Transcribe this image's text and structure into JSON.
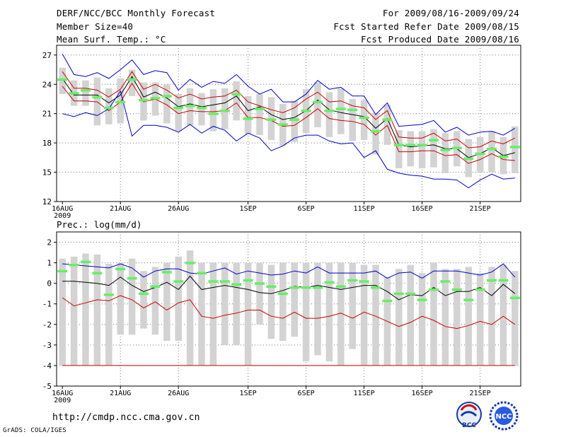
{
  "header": {
    "title": "DERF/NCC/BCC Monthly Forecast",
    "member": "Member Size=40",
    "variable": "Mean Surf. Temp.: °C",
    "period": "For 2009/08/16-2009/09/24",
    "started": "Fcst Started Refer Date 2009/08/15",
    "produced": "Fcst Produced Date 2009/08/16"
  },
  "footer": {
    "url": "http://cmdp.ncc.cma.gov.cn",
    "credit": "GrADS: COLA/IGES"
  },
  "logos": {
    "bcc": "BCC",
    "ncc": "NCC"
  },
  "colors": {
    "envelope": "#0000cc",
    "spread": "#cc0000",
    "mean": "#000000",
    "box": "#d3d3d3",
    "median": "#66ee66",
    "grid": "#777777"
  },
  "chart_data": [
    {
      "type": "line",
      "title": "",
      "ylabel": "Mean Surf. Temp.: °C",
      "ylim": [
        12,
        28
      ],
      "yticks": [
        12,
        15,
        18,
        21,
        24,
        27
      ],
      "xtick_labels": [
        "16AUG",
        "21AUG",
        "26AUG",
        "1SEP",
        "6SEP",
        "11SEP",
        "16SEP",
        "21SEP"
      ],
      "xtick_days": [
        1,
        6,
        11,
        17,
        22,
        27,
        32,
        37
      ],
      "year_label": "2009",
      "x_days": [
        1,
        2,
        3,
        4,
        5,
        6,
        7,
        8,
        9,
        10,
        11,
        12,
        13,
        14,
        15,
        16,
        17,
        18,
        19,
        20,
        21,
        22,
        23,
        24,
        25,
        26,
        27,
        28,
        29,
        30,
        31,
        32,
        33,
        34,
        35,
        36,
        37,
        38,
        39,
        40
      ],
      "series": [
        {
          "name": "max",
          "values": [
            27.1,
            25.0,
            24.8,
            25.2,
            24.6,
            25.5,
            26.5,
            25.0,
            25.4,
            25.2,
            23.4,
            24.5,
            23.7,
            24.3,
            24.1,
            25.0,
            23.8,
            23.0,
            23.5,
            22.2,
            22.2,
            23.0,
            24.4,
            23.5,
            23.7,
            22.8,
            22.8,
            20.9,
            22.1,
            19.7,
            19.8,
            19.9,
            20.3,
            19.1,
            19.6,
            18.8,
            19.1,
            19.2,
            18.8,
            19.5
          ]
        },
        {
          "name": "upper",
          "values": [
            25.3,
            23.6,
            23.6,
            23.4,
            22.7,
            23.5,
            25.3,
            23.5,
            24.0,
            23.4,
            22.6,
            23.0,
            22.5,
            22.7,
            22.8,
            23.4,
            22.2,
            21.8,
            21.4,
            21.1,
            21.6,
            22.5,
            23.2,
            22.2,
            22.3,
            21.8,
            21.6,
            20.4,
            21.3,
            18.6,
            18.5,
            18.5,
            19.0,
            18.2,
            18.4,
            17.5,
            17.6,
            18.2,
            17.9,
            18.5
          ]
        },
        {
          "name": "mean",
          "values": [
            24.6,
            22.9,
            22.9,
            22.9,
            22.1,
            22.9,
            24.8,
            22.7,
            23.2,
            22.6,
            21.7,
            22.0,
            21.7,
            21.9,
            22.1,
            22.8,
            21.3,
            21.7,
            20.9,
            20.4,
            20.6,
            21.3,
            22.4,
            21.4,
            21.1,
            20.9,
            20.7,
            19.5,
            20.5,
            17.8,
            17.6,
            17.7,
            17.8,
            17.4,
            17.4,
            16.5,
            16.9,
            17.5,
            16.7,
            17.0
          ]
        },
        {
          "name": "lower",
          "values": [
            23.8,
            22.3,
            22.3,
            22.2,
            21.3,
            22.2,
            24.1,
            22.2,
            22.5,
            21.9,
            21.0,
            21.3,
            21.2,
            21.2,
            21.3,
            22.1,
            20.6,
            20.6,
            20.3,
            19.7,
            19.8,
            20.6,
            21.5,
            20.5,
            20.3,
            20.2,
            19.9,
            18.8,
            19.8,
            17.1,
            17.1,
            17.2,
            17.2,
            16.7,
            16.8,
            15.9,
            16.3,
            16.9,
            16.3,
            16.2
          ]
        },
        {
          "name": "min",
          "values": [
            21.0,
            20.7,
            21.1,
            20.8,
            21.5,
            23.3,
            18.7,
            19.8,
            19.8,
            19.6,
            19.1,
            19.9,
            19.0,
            19.7,
            19.3,
            18.2,
            19.0,
            18.5,
            17.2,
            17.7,
            18.5,
            18.8,
            18.8,
            18.2,
            17.9,
            18.0,
            16.5,
            17.2,
            15.3,
            14.9,
            14.7,
            14.6,
            14.3,
            14.3,
            14.2,
            13.4,
            14.2,
            14.8,
            14.3,
            14.4
          ]
        }
      ],
      "boxes": {
        "low": [
          23.0,
          21.8,
          21.8,
          19.8,
          19.9,
          20.0,
          22.8,
          20.3,
          20.8,
          20.0,
          19.2,
          19.8,
          19.8,
          19.2,
          19.4,
          20.3,
          18.9,
          18.8,
          18.3,
          17.7,
          18.1,
          19.0,
          19.6,
          18.6,
          18.9,
          18.2,
          18.3,
          16.8,
          17.8,
          15.4,
          15.6,
          15.4,
          15.5,
          14.9,
          15.6,
          14.5,
          15.0,
          15.0,
          14.8,
          14.9
        ],
        "high": [
          25.7,
          24.4,
          24.4,
          24.7,
          23.6,
          24.6,
          25.5,
          24.2,
          24.2,
          24.0,
          23.0,
          23.6,
          23.1,
          23.5,
          23.6,
          24.3,
          22.8,
          23.0,
          22.7,
          22.0,
          22.3,
          23.5,
          24.2,
          23.2,
          23.6,
          22.5,
          22.4,
          21.1,
          21.9,
          19.3,
          19.2,
          19.2,
          19.4,
          19.0,
          19.2,
          18.4,
          18.6,
          19.2,
          18.6,
          19.7
        ],
        "median": [
          24.5,
          23.1,
          23.4,
          22.7,
          21.6,
          22.2,
          24.5,
          22.4,
          22.6,
          22.8,
          21.6,
          21.8,
          21.6,
          21.0,
          21.3,
          23.0,
          20.5,
          21.5,
          20.4,
          19.9,
          20.4,
          21.3,
          22.2,
          21.3,
          21.5,
          21.4,
          20.6,
          19.2,
          20.4,
          17.8,
          17.8,
          17.8,
          18.3,
          17.3,
          17.5,
          16.4,
          16.9,
          17.4,
          16.6,
          17.6
        ]
      }
    },
    {
      "type": "line",
      "title": "",
      "ylabel": "Prec.: log(mm/d)",
      "ylim": [
        -5,
        2.5
      ],
      "yticks": [
        -5,
        -4,
        -3,
        -2,
        -1,
        0,
        1,
        2
      ],
      "xtick_labels": [
        "16AUG",
        "21AUG",
        "26AUG",
        "1SEP",
        "6SEP",
        "11SEP",
        "16SEP",
        "21SEP"
      ],
      "xtick_days": [
        1,
        6,
        11,
        17,
        22,
        27,
        32,
        37
      ],
      "year_label": "2009",
      "x_days": [
        1,
        2,
        3,
        4,
        5,
        6,
        7,
        8,
        9,
        10,
        11,
        12,
        13,
        14,
        15,
        16,
        17,
        18,
        19,
        20,
        21,
        22,
        23,
        24,
        25,
        26,
        27,
        28,
        29,
        30,
        31,
        32,
        33,
        34,
        35,
        36,
        37,
        38,
        39,
        40
      ],
      "series": [
        {
          "name": "upper",
          "values": [
            0.95,
            0.9,
            0.85,
            0.8,
            0.75,
            0.95,
            0.75,
            0.3,
            0.6,
            0.7,
            0.7,
            0.5,
            0.45,
            0.6,
            0.75,
            0.45,
            0.6,
            0.5,
            0.4,
            0.45,
            0.6,
            0.5,
            0.8,
            0.5,
            0.5,
            0.5,
            0.5,
            0.6,
            0.25,
            0.5,
            0.55,
            0.25,
            0.6,
            0.6,
            0.6,
            0.5,
            0.4,
            0.55,
            0.95,
            0.3
          ]
        },
        {
          "name": "mean",
          "values": [
            0.1,
            0.1,
            0.05,
            0.0,
            -0.1,
            0.3,
            -0.1,
            -0.4,
            -0.2,
            0.05,
            -0.3,
            0.35,
            -0.3,
            -0.2,
            -0.1,
            -0.2,
            -0.3,
            -0.45,
            -0.5,
            -0.35,
            -0.15,
            -0.2,
            -0.1,
            -0.2,
            -0.3,
            -0.2,
            -0.1,
            -0.1,
            -0.4,
            -0.8,
            -0.55,
            -0.6,
            -0.2,
            -0.6,
            -0.4,
            -0.4,
            -0.2,
            -0.6,
            -0.05,
            -0.5
          ]
        },
        {
          "name": "lower",
          "values": [
            -0.7,
            -1.1,
            -0.95,
            -0.8,
            -0.85,
            -0.6,
            -0.8,
            -1.2,
            -0.9,
            -1.3,
            -0.95,
            -0.8,
            -1.6,
            -1.7,
            -1.55,
            -1.45,
            -1.3,
            -1.3,
            -1.6,
            -1.7,
            -1.4,
            -1.7,
            -1.7,
            -1.6,
            -1.45,
            -1.7,
            -1.4,
            -1.6,
            -1.85,
            -2.1,
            -1.9,
            -1.6,
            -1.8,
            -2.1,
            -2.2,
            -2.05,
            -1.85,
            -2.0,
            -1.6,
            -2.0
          ]
        },
        {
          "name": "min",
          "values": [
            -4,
            -4,
            -4,
            -4,
            -4,
            -4,
            -4,
            -4,
            -4,
            -4,
            -4,
            -4,
            -4,
            -4,
            -4,
            -4,
            -4,
            -4,
            -4,
            -4,
            -4,
            -4,
            -4,
            -4,
            -4,
            -4,
            -4,
            -4,
            -4,
            -4,
            -4,
            -4,
            -4,
            -4,
            -4,
            -4,
            -4,
            -4,
            -4,
            -4
          ]
        }
      ],
      "boxes": {
        "low": [
          -4,
          -4,
          -4,
          -4,
          -4,
          -2.5,
          -2.5,
          -2.2,
          -2.5,
          -2.8,
          -2.8,
          -4,
          -4,
          -4,
          -3.0,
          -3.0,
          -4,
          -2.0,
          -2.7,
          -2.8,
          -2.6,
          -3.8,
          -3.5,
          -3.8,
          -4,
          -3.2,
          -4,
          -4,
          -4,
          -4,
          -4,
          -4,
          -4,
          -4,
          -4,
          -4,
          -4,
          -4,
          -4,
          -4
        ],
        "high": [
          1.2,
          1.3,
          1.45,
          1.4,
          0.95,
          1.0,
          1.2,
          0.6,
          0.8,
          1.0,
          1.3,
          1.6,
          1.0,
          1.0,
          1.0,
          1.0,
          1.0,
          1.0,
          0.9,
          1.0,
          1.0,
          1.0,
          1.0,
          1.0,
          1.0,
          1.0,
          0.9,
          0.9,
          0.3,
          0.7,
          0.9,
          0.5,
          1.0,
          0.7,
          0.7,
          0.8,
          0.5,
          0.8,
          0.9,
          0.6
        ]
      },
      "median": [
        0.6,
        0.9,
        1.05,
        0.5,
        -0.55,
        0.7,
        0.25,
        -0.5,
        -0.15,
        0.55,
        0.1,
        1.0,
        0.5,
        0.1,
        0.1,
        -0.05,
        0.15,
        0.0,
        -0.15,
        -0.5,
        -0.2,
        -0.2,
        -0.2,
        0.05,
        -0.15,
        0.15,
        0.1,
        -0.2,
        -0.85,
        -0.5,
        -0.5,
        -0.8,
        -0.3,
        0.1,
        -0.3,
        -0.8,
        -0.3,
        0.15,
        0.15,
        -0.7
      ]
    }
  ]
}
